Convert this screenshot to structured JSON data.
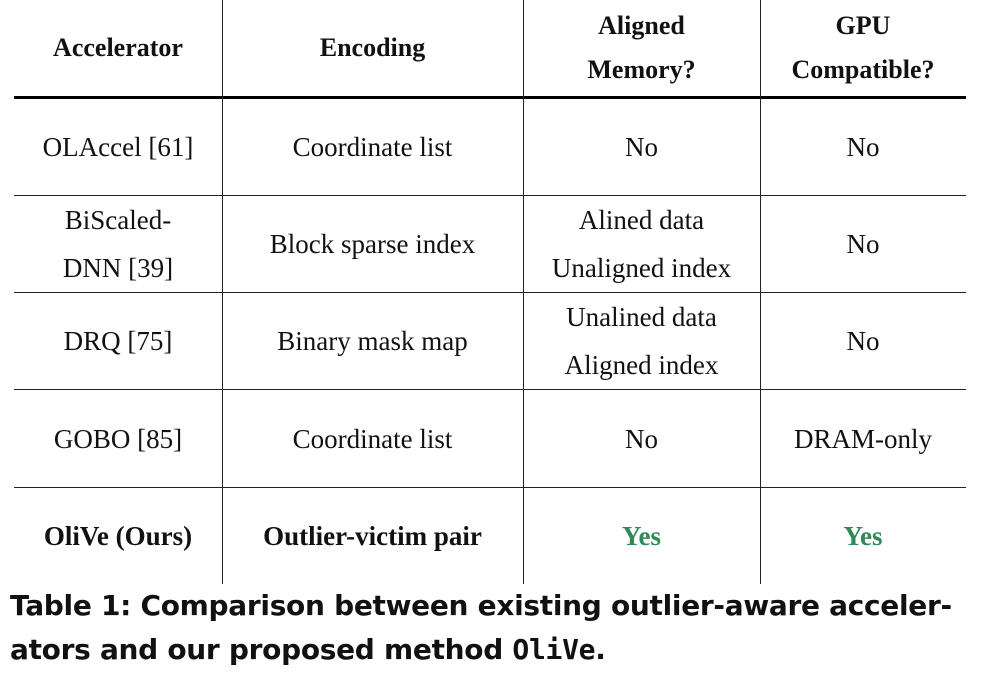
{
  "table": {
    "headers": {
      "accelerator": "Accelerator",
      "encoding": "Encoding",
      "aligned_memory_line1": "Aligned",
      "aligned_memory_line2": "Memory?",
      "gpu_line1": "GPU",
      "gpu_line2": "Compatible?"
    },
    "rows": [
      {
        "accelerator": [
          "OLAccel [61]"
        ],
        "encoding": "Coordinate list",
        "aligned": [
          "No"
        ],
        "gpu": "No"
      },
      {
        "accelerator": [
          "BiScaled-",
          "DNN [39]"
        ],
        "encoding": "Block sparse index",
        "aligned": [
          "Alined data",
          "Unaligned index"
        ],
        "gpu": "No"
      },
      {
        "accelerator": [
          "DRQ [75]"
        ],
        "encoding": "Binary mask map",
        "aligned": [
          "Unalined data",
          "Aligned index"
        ],
        "gpu": "No"
      },
      {
        "accelerator": [
          "GOBO [85]"
        ],
        "encoding": "Coordinate list",
        "aligned": [
          "No"
        ],
        "gpu": "DRAM-only"
      },
      {
        "accelerator": [
          "OliVe (Ours)"
        ],
        "encoding": "Outlier-victim pair",
        "aligned": [
          "Yes"
        ],
        "gpu": "Yes"
      }
    ]
  },
  "caption": {
    "prefix": "Table 1: Comparison between existing outlier-aware acceler-",
    "line2_prefix": "ators and our proposed method ",
    "method": "OliVe",
    "suffix": "."
  },
  "colors": {
    "yes": "#2e8b57"
  }
}
